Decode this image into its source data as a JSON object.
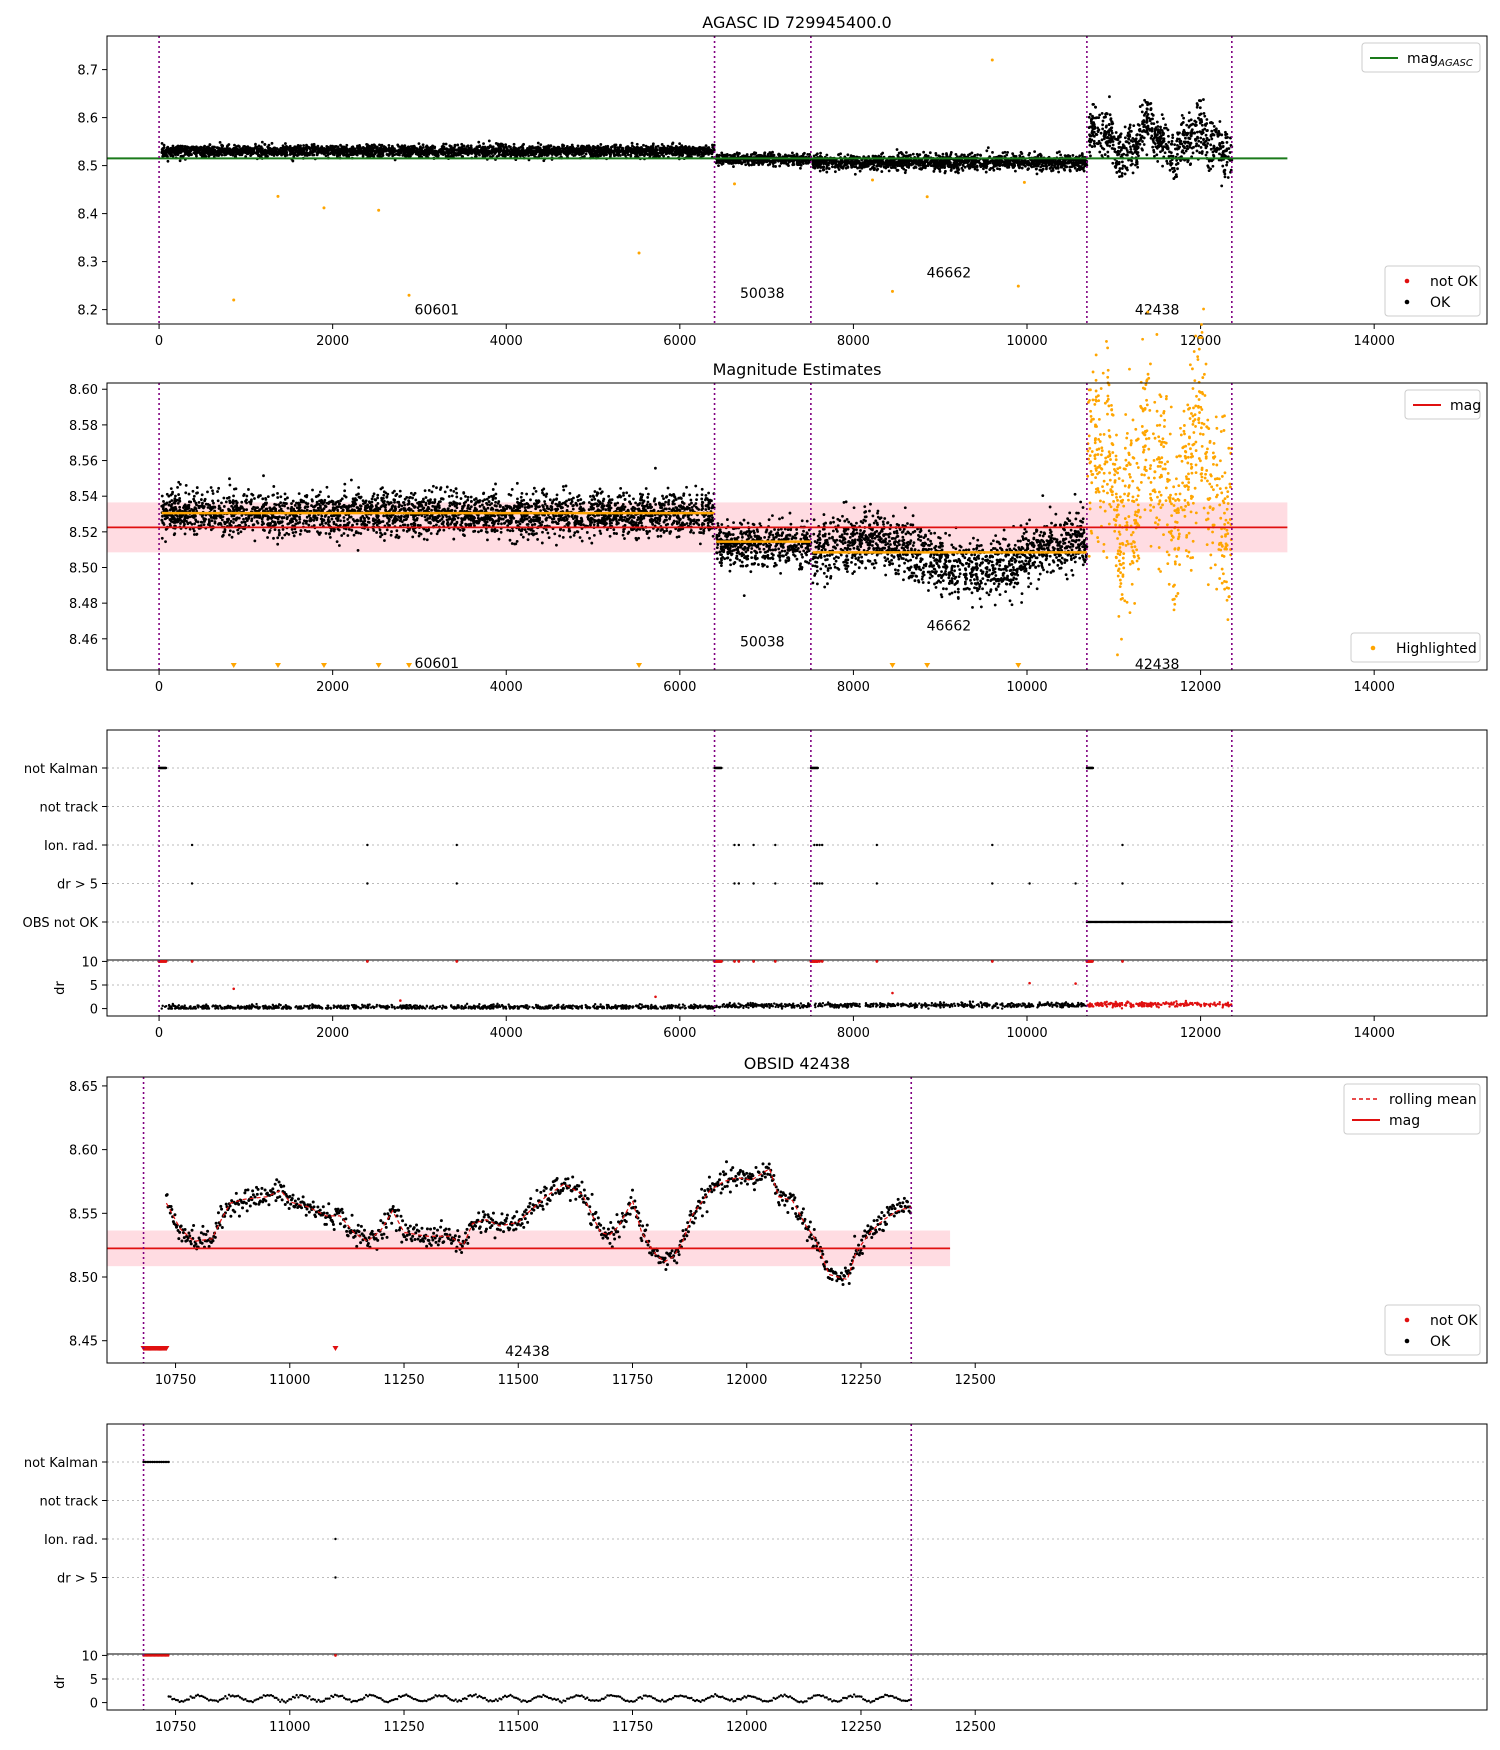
{
  "chart_data": [
    {
      "type": "scatter",
      "title": "AGASC ID 729945400.0",
      "xlim": [
        -600,
        15300
      ],
      "ylim": [
        8.17,
        8.77
      ],
      "xticks": [
        0,
        2000,
        4000,
        6000,
        8000,
        10000,
        12000,
        14000
      ],
      "yticks": [
        8.2,
        8.3,
        8.4,
        8.5,
        8.6,
        8.7
      ],
      "legend_top": [
        {
          "label": "mag",
          "sub": "AGASC",
          "color": "#1a7a1a",
          "kind": "line"
        }
      ],
      "legend_bottom": [
        {
          "label": "not OK",
          "color": "#e01010",
          "kind": "dot"
        },
        {
          "label": "OK",
          "color": "#000000",
          "kind": "dot"
        }
      ],
      "mag_agasc": 8.515,
      "mag_line_x": [
        -600,
        13000
      ],
      "obs_boundaries": [
        0,
        6400,
        7510,
        10690,
        12360
      ],
      "obsid_labels": [
        {
          "text": "60601",
          "x": 3200,
          "y": 8.2
        },
        {
          "text": "50038",
          "x": 6950,
          "y": 8.235
        },
        {
          "text": "46662",
          "x": 9100,
          "y": 8.277
        },
        {
          "text": "42438",
          "x": 11500,
          "y": 8.2
        }
      ],
      "segments": [
        {
          "x0": 30,
          "x1": 6400,
          "mean": 8.53,
          "spread": 0.006
        },
        {
          "x0": 6420,
          "x1": 7510,
          "mean": 8.513,
          "spread": 0.006
        },
        {
          "x0": 7530,
          "x1": 10690,
          "mean": 8.507,
          "spread": 0.008
        },
        {
          "x0": 10700,
          "x1": 12360,
          "mean": 8.55,
          "spread": 0.025
        }
      ],
      "outliers_orange": [
        [
          860,
          8.22
        ],
        [
          1370,
          8.436
        ],
        [
          1900,
          8.412
        ],
        [
          2530,
          8.407
        ],
        [
          2880,
          8.23
        ],
        [
          5530,
          8.318
        ],
        [
          9600,
          8.72
        ],
        [
          8450,
          8.238
        ],
        [
          8850,
          8.435
        ],
        [
          9900,
          8.249
        ],
        [
          6630,
          8.462
        ],
        [
          9970,
          8.465
        ],
        [
          8220,
          8.47
        ]
      ]
    },
    {
      "type": "scatter",
      "title": "Magnitude Estimates",
      "xlim": [
        -600,
        15300
      ],
      "ylim": [
        8.4425,
        8.6035
      ],
      "xticks": [
        0,
        2000,
        4000,
        6000,
        8000,
        10000,
        12000,
        14000
      ],
      "yticks": [
        8.46,
        8.48,
        8.5,
        8.52,
        8.54,
        8.56,
        8.58,
        8.6
      ],
      "legend_top": [
        {
          "label": "mag",
          "color": "#e01010",
          "kind": "line"
        }
      ],
      "legend_bottom": [
        {
          "label": "Highlighted",
          "color": "#ffa500",
          "kind": "dot"
        }
      ],
      "mag": 8.5225,
      "mag_band": [
        8.5085,
        8.5365
      ],
      "mag_line_x": [
        -600,
        13000
      ],
      "segment_means": [
        {
          "x0": 30,
          "x1": 6400,
          "mean": 8.5305
        },
        {
          "x0": 6420,
          "x1": 7510,
          "mean": 8.5145
        },
        {
          "x0": 7530,
          "x1": 10690,
          "mean": 8.5085
        }
      ],
      "obs_boundaries": [
        0,
        6400,
        7510,
        10690,
        12360
      ],
      "obsid_labels": [
        {
          "text": "60601",
          "x": 3200,
          "y": 8.4465
        },
        {
          "text": "50038",
          "x": 6950,
          "y": 8.4585
        },
        {
          "text": "46662",
          "x": 9100,
          "y": 8.4675
        },
        {
          "text": "42438",
          "x": 11500,
          "y": 8.446
        }
      ],
      "below_range_markers_x": [
        860,
        1370,
        1900,
        2530,
        2880,
        5530,
        8450,
        8850,
        9900
      ]
    },
    {
      "type": "scatter",
      "title": "",
      "xlim": [
        -600,
        15300
      ],
      "categories": [
        "not Kalman",
        "not track",
        "Ion. rad.",
        "dr > 5",
        "OBS not OK"
      ],
      "dr_ylim": [
        -0.3,
        10.3
      ],
      "dr_yticks": [
        0,
        5,
        10
      ],
      "dr_ylabel": "dr",
      "xticks": [
        0,
        2000,
        4000,
        6000,
        8000,
        10000,
        12000,
        14000
      ],
      "obs_boundaries": [
        0,
        6400,
        7510,
        10690,
        12360
      ],
      "not_kalman_ranges": [
        [
          0,
          80
        ],
        [
          6400,
          6480
        ],
        [
          7510,
          7590
        ],
        [
          10690,
          10760
        ]
      ],
      "ion_rad_x": [
        380,
        2400,
        3430,
        6630,
        6680,
        6850,
        7100,
        7550,
        7580,
        7610,
        7640,
        8270,
        9600,
        11100
      ],
      "dr5_x": [
        380,
        2400,
        3430,
        6630,
        6680,
        6850,
        7100,
        7550,
        7580,
        7610,
        7640,
        8270,
        9600,
        10030,
        10560,
        11100
      ],
      "obs_not_ok_range": [
        10690,
        12360
      ],
      "dr_outliers": [
        [
          860,
          4.2
        ],
        [
          8450,
          3.3
        ],
        [
          10030,
          5.4
        ],
        [
          10560,
          5.3
        ],
        [
          5720,
          2.5
        ],
        [
          2780,
          1.7
        ]
      ],
      "dr_levels": [
        {
          "x0": 30,
          "x1": 6400,
          "mean": 0.3
        },
        {
          "x0": 6420,
          "x1": 7510,
          "mean": 0.6
        },
        {
          "x0": 7530,
          "x1": 10690,
          "mean": 0.7
        },
        {
          "x0": 10700,
          "x1": 12360,
          "mean": 0.9
        }
      ]
    },
    {
      "type": "line",
      "title": "OBSID 42438",
      "xlim": [
        10600,
        13620
      ],
      "ylim": [
        8.4325,
        8.657
      ],
      "xticks": [
        10750,
        11000,
        11250,
        11500,
        11750,
        12000,
        12250,
        12500
      ],
      "yticks": [
        8.45,
        8.5,
        8.55,
        8.6,
        8.65
      ],
      "legend_top": [
        {
          "label": "rolling mean",
          "color": "#e01010",
          "kind": "dashed"
        },
        {
          "label": "mag",
          "color": "#e01010",
          "kind": "line"
        }
      ],
      "legend_bottom": [
        {
          "label": "not OK",
          "color": "#e01010",
          "kind": "dot"
        },
        {
          "label": "OK",
          "color": "#000000",
          "kind": "dot"
        }
      ],
      "mag": 8.5225,
      "mag_band": [
        8.5085,
        8.5365
      ],
      "mag_line_x": [
        10600,
        12445
      ],
      "obs_boundaries": [
        10680,
        12360
      ],
      "obsid_labels": [
        {
          "text": "42438",
          "x": 11520,
          "y": 8.442
        }
      ],
      "not_ok_range": [
        10680,
        10730
      ],
      "not_ok_extra_x": [
        11100
      ],
      "rolling_mean": [
        [
          10730,
          8.558
        ],
        [
          10760,
          8.538
        ],
        [
          10790,
          8.528
        ],
        [
          10830,
          8.53
        ],
        [
          10850,
          8.545
        ],
        [
          10870,
          8.558
        ],
        [
          10900,
          8.561
        ],
        [
          10950,
          8.563
        ],
        [
          10980,
          8.568
        ],
        [
          11000,
          8.559
        ],
        [
          11040,
          8.555
        ],
        [
          11080,
          8.548
        ],
        [
          11110,
          8.548
        ],
        [
          11140,
          8.535
        ],
        [
          11170,
          8.528
        ],
        [
          11200,
          8.537
        ],
        [
          11225,
          8.552
        ],
        [
          11250,
          8.535
        ],
        [
          11300,
          8.532
        ],
        [
          11350,
          8.532
        ],
        [
          11380,
          8.525
        ],
        [
          11400,
          8.542
        ],
        [
          11430,
          8.545
        ],
        [
          11460,
          8.54
        ],
        [
          11500,
          8.543
        ],
        [
          11520,
          8.55
        ],
        [
          11560,
          8.563
        ],
        [
          11600,
          8.573
        ],
        [
          11640,
          8.565
        ],
        [
          11680,
          8.535
        ],
        [
          11700,
          8.533
        ],
        [
          11720,
          8.54
        ],
        [
          11750,
          8.56
        ],
        [
          11770,
          8.535
        ],
        [
          11800,
          8.518
        ],
        [
          11820,
          8.512
        ],
        [
          11840,
          8.516
        ],
        [
          11860,
          8.528
        ],
        [
          11880,
          8.548
        ],
        [
          11920,
          8.568
        ],
        [
          11950,
          8.575
        ],
        [
          11980,
          8.578
        ],
        [
          12010,
          8.576
        ],
        [
          12050,
          8.585
        ],
        [
          12070,
          8.563
        ],
        [
          12100,
          8.56
        ],
        [
          12130,
          8.54
        ],
        [
          12150,
          8.53
        ],
        [
          12180,
          8.502
        ],
        [
          12220,
          8.498
        ],
        [
          12240,
          8.52
        ],
        [
          12270,
          8.535
        ],
        [
          12300,
          8.545
        ],
        [
          12330,
          8.552
        ],
        [
          12360,
          8.555
        ]
      ]
    },
    {
      "type": "scatter",
      "title": "",
      "xlim": [
        10600,
        13620
      ],
      "categories": [
        "not Kalman",
        "not track",
        "Ion. rad.",
        "dr > 5"
      ],
      "dr_ylim": [
        -0.3,
        10.3
      ],
      "dr_yticks": [
        0,
        5,
        10
      ],
      "dr_ylabel": "dr",
      "xticks": [
        10750,
        11000,
        11250,
        11500,
        11750,
        12000,
        12250,
        12500
      ],
      "obs_boundaries": [
        10680,
        12360
      ],
      "not_kalman_range": [
        10680,
        10735
      ],
      "ion_rad_x": [
        11100
      ],
      "dr5_x": [
        11100
      ],
      "dr10_red_range": [
        10680,
        10735
      ],
      "dr10_red_extra_x": [
        11100
      ],
      "dr_level": {
        "x0": 10735,
        "x1": 12360,
        "mean": 0.9
      }
    }
  ]
}
